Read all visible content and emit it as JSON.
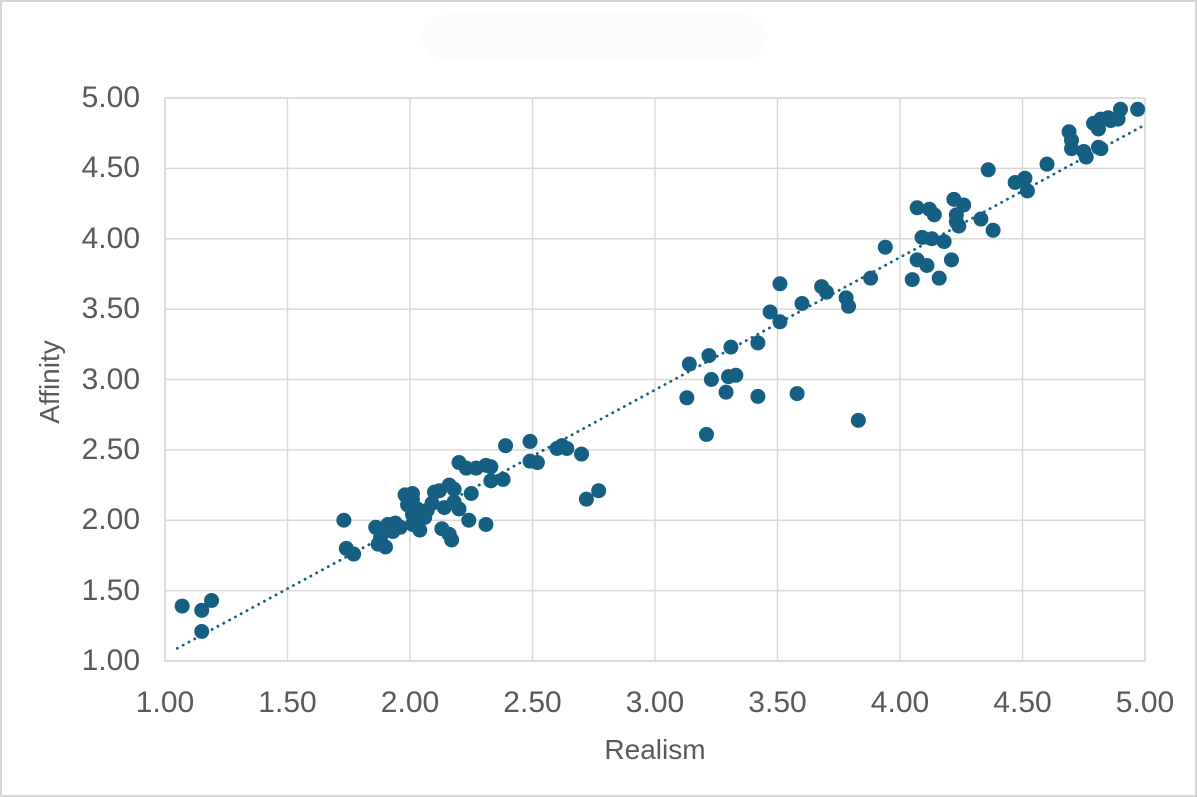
{
  "page": {
    "background_color": "#ffffff",
    "border_color": "#d5d5d5",
    "title_redacted": true
  },
  "chart_data": {
    "type": "scatter",
    "title": "",
    "xlabel": "Realism",
    "ylabel": "Affinity",
    "xlim": [
      1.0,
      5.0
    ],
    "ylim": [
      1.0,
      5.0
    ],
    "xticks": [
      "1.00",
      "1.50",
      "2.00",
      "2.50",
      "3.00",
      "3.50",
      "4.00",
      "4.50",
      "5.00"
    ],
    "yticks": [
      "5.00",
      "4.50",
      "4.00",
      "3.50",
      "3.00",
      "2.50",
      "2.00",
      "1.50",
      "1.00"
    ],
    "grid": true,
    "legend": false,
    "grid_color": "#d9d9d9",
    "tick_label_color": "#595959",
    "axis_title_color": "#595959",
    "point_color": "#156082",
    "trendline": {
      "type": "linear",
      "style": "dotted",
      "color": "#156082",
      "x_start": 1.05,
      "y_start": 1.09,
      "x_end": 4.99,
      "y_end": 4.8
    },
    "points": [
      [
        1.07,
        1.39
      ],
      [
        1.15,
        1.36
      ],
      [
        1.15,
        1.21
      ],
      [
        1.19,
        1.43
      ],
      [
        1.73,
        2.0
      ],
      [
        1.74,
        1.8
      ],
      [
        1.77,
        1.76
      ],
      [
        1.86,
        1.95
      ],
      [
        1.87,
        1.83
      ],
      [
        1.88,
        1.88
      ],
      [
        1.9,
        1.81
      ],
      [
        1.91,
        1.97
      ],
      [
        1.93,
        1.92
      ],
      [
        1.94,
        1.98
      ],
      [
        1.96,
        1.95
      ],
      [
        1.98,
        2.18
      ],
      [
        1.99,
        2.11
      ],
      [
        2.0,
        2.14
      ],
      [
        2.01,
        2.19
      ],
      [
        2.01,
        2.15
      ],
      [
        2.01,
        2.04
      ],
      [
        2.01,
        1.97
      ],
      [
        2.03,
        2.08
      ],
      [
        2.04,
        1.93
      ],
      [
        2.06,
        2.02
      ],
      [
        2.07,
        2.07
      ],
      [
        2.09,
        2.12
      ],
      [
        2.1,
        2.2
      ],
      [
        2.12,
        2.21
      ],
      [
        2.13,
        1.94
      ],
      [
        2.14,
        2.09
      ],
      [
        2.16,
        1.9
      ],
      [
        2.16,
        2.25
      ],
      [
        2.17,
        1.86
      ],
      [
        2.18,
        2.13
      ],
      [
        2.18,
        2.22
      ],
      [
        2.2,
        2.08
      ],
      [
        2.2,
        2.41
      ],
      [
        2.23,
        2.37
      ],
      [
        2.24,
        2.0
      ],
      [
        2.25,
        2.19
      ],
      [
        2.27,
        2.37
      ],
      [
        2.31,
        1.97
      ],
      [
        2.31,
        2.39
      ],
      [
        2.33,
        2.38
      ],
      [
        2.33,
        2.28
      ],
      [
        2.38,
        2.29
      ],
      [
        2.39,
        2.53
      ],
      [
        2.49,
        2.56
      ],
      [
        2.49,
        2.42
      ],
      [
        2.52,
        2.41
      ],
      [
        2.6,
        2.51
      ],
      [
        2.62,
        2.53
      ],
      [
        2.64,
        2.51
      ],
      [
        2.7,
        2.47
      ],
      [
        2.72,
        2.15
      ],
      [
        2.77,
        2.21
      ],
      [
        3.13,
        2.87
      ],
      [
        3.14,
        3.11
      ],
      [
        3.21,
        2.61
      ],
      [
        3.22,
        3.17
      ],
      [
        3.23,
        3.0
      ],
      [
        3.29,
        2.91
      ],
      [
        3.3,
        3.02
      ],
      [
        3.33,
        3.03
      ],
      [
        3.31,
        3.23
      ],
      [
        3.42,
        3.26
      ],
      [
        3.42,
        2.88
      ],
      [
        3.47,
        3.48
      ],
      [
        3.51,
        3.68
      ],
      [
        3.51,
        3.41
      ],
      [
        3.58,
        2.9
      ],
      [
        3.6,
        3.54
      ],
      [
        3.68,
        3.66
      ],
      [
        3.7,
        3.62
      ],
      [
        3.78,
        3.58
      ],
      [
        3.79,
        3.52
      ],
      [
        3.83,
        2.71
      ],
      [
        3.88,
        3.72
      ],
      [
        3.94,
        3.94
      ],
      [
        4.05,
        3.71
      ],
      [
        4.07,
        3.85
      ],
      [
        4.07,
        4.22
      ],
      [
        4.09,
        4.01
      ],
      [
        4.11,
        3.81
      ],
      [
        4.12,
        4.21
      ],
      [
        4.13,
        4.0
      ],
      [
        4.14,
        4.17
      ],
      [
        4.16,
        3.72
      ],
      [
        4.18,
        3.98
      ],
      [
        4.21,
        3.85
      ],
      [
        4.22,
        4.28
      ],
      [
        4.23,
        4.17
      ],
      [
        4.23,
        4.12
      ],
      [
        4.24,
        4.09
      ],
      [
        4.26,
        4.24
      ],
      [
        4.33,
        4.14
      ],
      [
        4.36,
        4.49
      ],
      [
        4.38,
        4.06
      ],
      [
        4.47,
        4.4
      ],
      [
        4.51,
        4.43
      ],
      [
        4.52,
        4.34
      ],
      [
        4.6,
        4.53
      ],
      [
        4.69,
        4.76
      ],
      [
        4.7,
        4.7
      ],
      [
        4.7,
        4.64
      ],
      [
        4.75,
        4.62
      ],
      [
        4.76,
        4.58
      ],
      [
        4.79,
        4.82
      ],
      [
        4.81,
        4.78
      ],
      [
        4.81,
        4.65
      ],
      [
        4.82,
        4.85
      ],
      [
        4.82,
        4.64
      ],
      [
        4.85,
        4.86
      ],
      [
        4.86,
        4.84
      ],
      [
        4.89,
        4.85
      ],
      [
        4.9,
        4.92
      ],
      [
        4.97,
        4.92
      ]
    ]
  }
}
